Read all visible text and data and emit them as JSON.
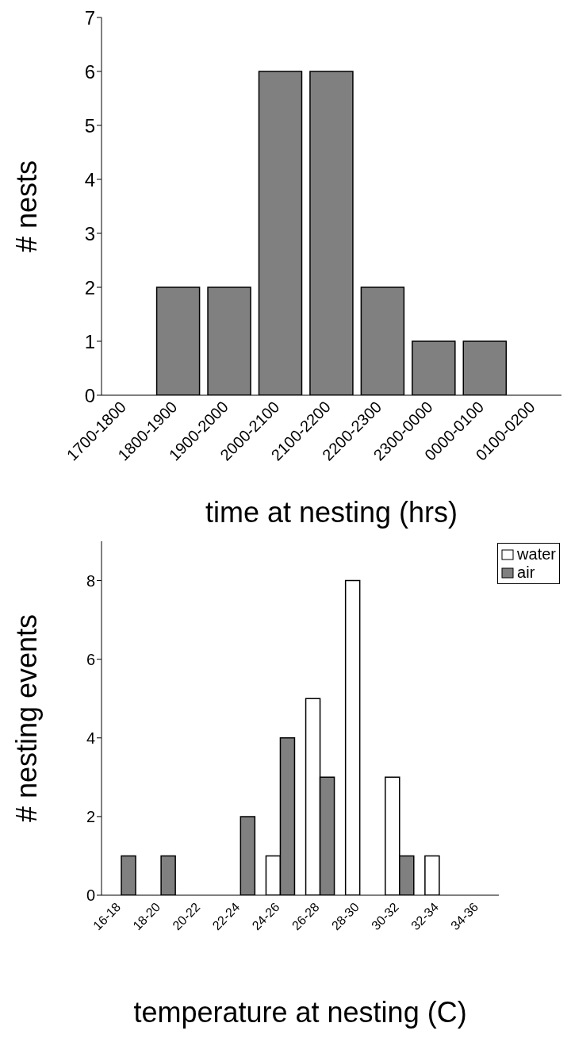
{
  "chart_data": [
    {
      "type": "bar",
      "xlabel": "time at nesting (hrs)",
      "ylabel": "# nests",
      "categories": [
        "1700-1800",
        "1800-1900",
        "1900-2000",
        "2000-2100",
        "2100-2200",
        "2200-2300",
        "2300-0000",
        "0000-0100",
        "0100-0200"
      ],
      "values": [
        0,
        2,
        2,
        6,
        6,
        2,
        1,
        1,
        0
      ],
      "color": "#808080",
      "ylim": [
        0,
        7
      ],
      "yticks": [
        0,
        1,
        2,
        3,
        4,
        5,
        6,
        7
      ],
      "grid": false,
      "legend": false
    },
    {
      "type": "bar",
      "xlabel": "temperature at nesting (C)",
      "ylabel": "# nesting events",
      "categories": [
        "16-18",
        "18-20",
        "20-22",
        "22-24",
        "24-26",
        "26-28",
        "28-30",
        "30-32",
        "32-34",
        "34-36"
      ],
      "series": [
        {
          "name": "water",
          "color": "#ffffff",
          "values": [
            0,
            0,
            0,
            0,
            1,
            5,
            8,
            3,
            1,
            0
          ]
        },
        {
          "name": "air",
          "color": "#808080",
          "values": [
            1,
            1,
            0,
            2,
            4,
            3,
            0,
            1,
            0,
            0
          ]
        }
      ],
      "ylim": [
        0,
        9
      ],
      "yticks": [
        0,
        2,
        4,
        6,
        8
      ],
      "grid": false,
      "legend": "top right"
    }
  ]
}
